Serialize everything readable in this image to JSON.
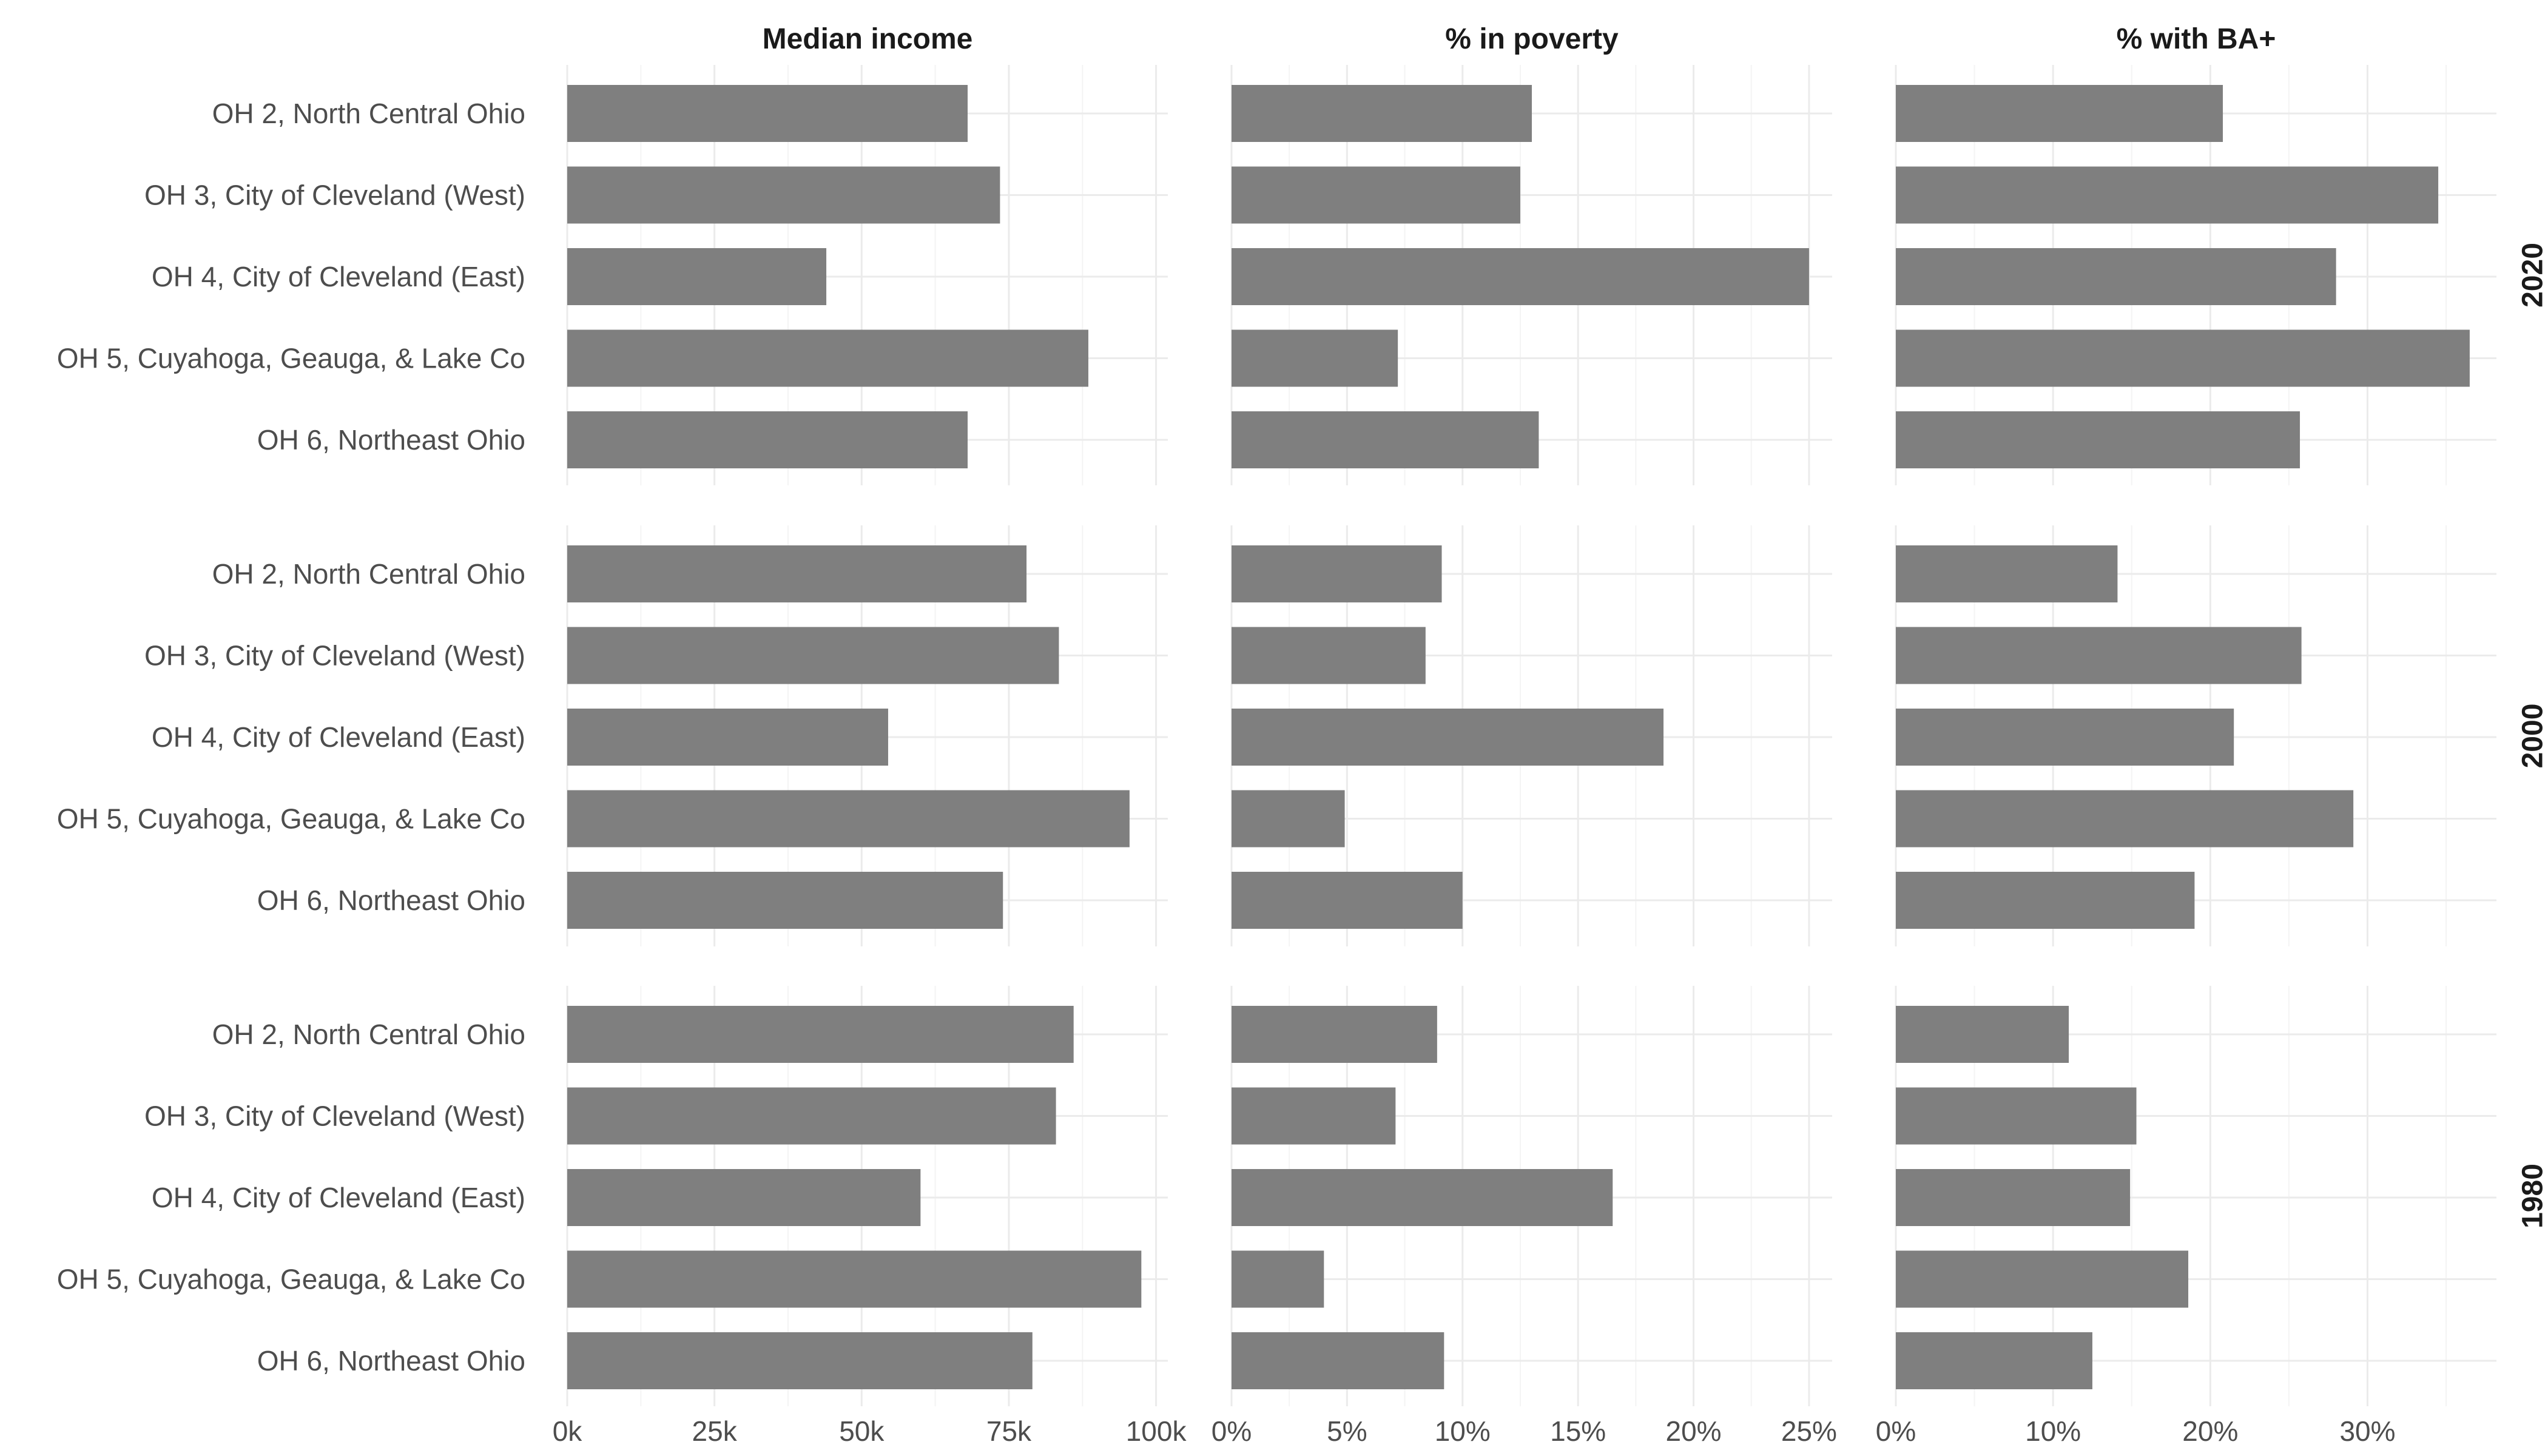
{
  "chart_data": {
    "type": "bar",
    "orientation": "horizontal",
    "columns": [
      {
        "title": "Median income",
        "xlim": [
          0,
          102000
        ],
        "ticks": [
          0,
          25000,
          50000,
          75000,
          100000
        ],
        "tick_labels": [
          "0k",
          "25k",
          "50k",
          "75k",
          "100k"
        ],
        "minor_ticks": [
          12500,
          37500,
          62500,
          87500
        ]
      },
      {
        "title": "% in poverty",
        "xlim": [
          0,
          26
        ],
        "ticks": [
          0,
          5,
          10,
          15,
          20,
          25
        ],
        "tick_labels": [
          "0%",
          "5%",
          "10%",
          "15%",
          "20%",
          "25%"
        ],
        "minor_ticks": [
          2.5,
          7.5,
          12.5,
          17.5,
          22.5
        ]
      },
      {
        "title": "% with BA+",
        "xlim": [
          0,
          38.2
        ],
        "ticks": [
          0,
          10,
          20,
          30
        ],
        "tick_labels": [
          "0%",
          "10%",
          "20%",
          "30%"
        ],
        "minor_ticks": [
          5,
          15,
          25,
          35
        ]
      }
    ],
    "rows": [
      "2020",
      "2000",
      "1980"
    ],
    "categories": [
      "OH 2, North Central Ohio",
      "OH 3, City of Cleveland (West)",
      "OH 4, City of Cleveland (East)",
      "OH 5, Cuyahoga, Geauga, & Lake Co",
      "OH 6, Northeast Ohio"
    ],
    "values": [
      [
        [
          68000,
          73500,
          44000,
          88500,
          68000
        ],
        [
          13.0,
          12.5,
          25.0,
          7.2,
          13.3
        ],
        [
          20.8,
          34.5,
          28.0,
          36.5,
          25.7
        ]
      ],
      [
        [
          78000,
          83500,
          54500,
          95500,
          74000
        ],
        [
          9.1,
          8.4,
          18.7,
          4.9,
          10.0
        ],
        [
          14.1,
          25.8,
          21.5,
          29.1,
          19.0
        ]
      ],
      [
        [
          86000,
          83000,
          60000,
          97500,
          79000
        ],
        [
          8.9,
          7.1,
          16.5,
          4.0,
          9.2
        ],
        [
          11.0,
          15.3,
          14.9,
          18.6,
          12.5
        ]
      ]
    ],
    "grid": true,
    "legend": "none",
    "bar_color": "#7f7f7f"
  }
}
